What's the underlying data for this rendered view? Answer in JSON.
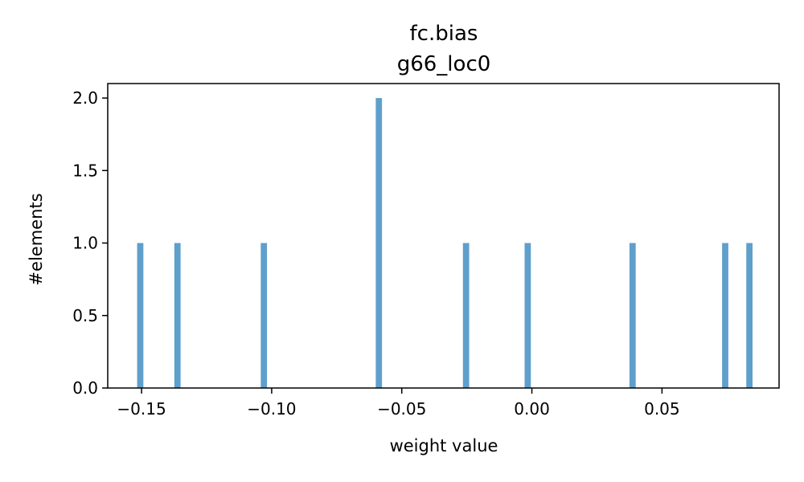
{
  "chart_data": {
    "type": "bar",
    "title": "fc.bias",
    "subtitle": "g66_loc0",
    "xlabel": "weight value",
    "ylabel": "#elements",
    "xlim": [
      -0.163,
      0.095
    ],
    "ylim": [
      0,
      2.1
    ],
    "x_ticks": [
      -0.15,
      -0.1,
      -0.05,
      0.0,
      0.05
    ],
    "x_tick_labels": [
      "−0.15",
      "−0.10",
      "−0.05",
      "0.00",
      "0.05"
    ],
    "y_ticks": [
      0.0,
      0.5,
      1.0,
      1.5,
      2.0
    ],
    "y_tick_labels": [
      "0.0",
      "0.5",
      "1.0",
      "1.5",
      "2.0"
    ],
    "bin_width": 0.0024,
    "grid": false,
    "bar_color": "#5f9fcb",
    "bins": [
      {
        "x": -0.1505,
        "count": 1
      },
      {
        "x": -0.1362,
        "count": 1
      },
      {
        "x": -0.103,
        "count": 1
      },
      {
        "x": -0.0588,
        "count": 2
      },
      {
        "x": -0.0253,
        "count": 1
      },
      {
        "x": -0.0016,
        "count": 1
      },
      {
        "x": 0.0387,
        "count": 1
      },
      {
        "x": 0.0743,
        "count": 1
      },
      {
        "x": 0.0836,
        "count": 1
      }
    ]
  }
}
